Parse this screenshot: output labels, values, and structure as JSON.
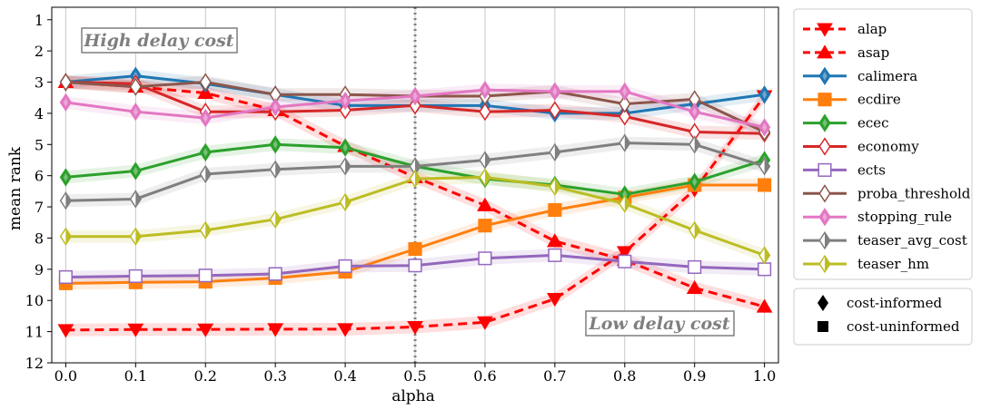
{
  "chart_data": {
    "type": "line",
    "title": "",
    "xlabel": "alpha",
    "ylabel": "mean rank",
    "x": [
      0.0,
      0.1,
      0.2,
      0.3,
      0.4,
      0.5,
      0.6,
      0.7,
      0.8,
      0.9,
      1.0
    ],
    "xticks": [
      "0.0",
      "0.1",
      "0.2",
      "0.3",
      "0.4",
      "0.5",
      "0.6",
      "0.7",
      "0.8",
      "0.9",
      "1.0"
    ],
    "yticks": [
      "1",
      "2",
      "3",
      "4",
      "5",
      "6",
      "7",
      "8",
      "9",
      "10",
      "11",
      "12"
    ],
    "xlim": [
      -0.02,
      1.02
    ],
    "ylim": [
      12,
      0.6
    ],
    "y_inverted": true,
    "vline_x": 0.5,
    "grid": "vertical",
    "annotations": [
      {
        "text": "High delay cost",
        "anchor": "top-left"
      },
      {
        "text": "Low delay cost",
        "anchor": "bottom-right"
      }
    ],
    "series": [
      {
        "name": "alap",
        "color": "#ff0000",
        "marker": "triangle-down",
        "dashed": true,
        "filled": true,
        "values": [
          10.95,
          10.93,
          10.93,
          10.92,
          10.92,
          10.85,
          10.7,
          9.95,
          8.45,
          6.45,
          3.45
        ]
      },
      {
        "name": "asap",
        "color": "#ff0000",
        "marker": "triangle-up",
        "dashed": true,
        "filled": true,
        "values": [
          3.0,
          3.15,
          3.35,
          3.9,
          5.05,
          6.05,
          6.95,
          8.1,
          8.7,
          9.6,
          10.2
        ]
      },
      {
        "name": "calimera",
        "color": "#1f77b4",
        "marker": "diamond",
        "filled": true,
        "values": [
          3.0,
          2.8,
          3.05,
          3.4,
          3.75,
          3.75,
          3.75,
          4.0,
          4.0,
          3.7,
          3.4
        ]
      },
      {
        "name": "ecdire",
        "color": "#ff7f0e",
        "marker": "square",
        "filled": true,
        "values": [
          9.45,
          9.42,
          9.4,
          9.28,
          9.08,
          8.35,
          7.6,
          7.1,
          6.7,
          6.3,
          6.3
        ]
      },
      {
        "name": "ecec",
        "color": "#2ca02c",
        "marker": "diamond",
        "filled": true,
        "values": [
          6.05,
          5.85,
          5.25,
          5.0,
          5.1,
          5.7,
          6.1,
          6.3,
          6.6,
          6.2,
          5.5
        ]
      },
      {
        "name": "economy",
        "color": "#d62728",
        "marker": "diamond",
        "filled": false,
        "values": [
          3.0,
          3.05,
          3.95,
          3.95,
          3.9,
          3.75,
          3.95,
          3.9,
          4.1,
          4.6,
          4.65
        ]
      },
      {
        "name": "ects",
        "color": "#9467bd",
        "marker": "square",
        "filled": false,
        "values": [
          9.25,
          9.22,
          9.2,
          9.15,
          8.9,
          8.88,
          8.65,
          8.55,
          8.75,
          8.93,
          9.0
        ]
      },
      {
        "name": "proba_threshold",
        "color": "#8c564b",
        "marker": "diamond",
        "filled": false,
        "values": [
          3.0,
          3.15,
          3.0,
          3.4,
          3.4,
          3.45,
          3.45,
          3.3,
          3.7,
          3.55,
          4.6
        ]
      },
      {
        "name": "stopping_rule",
        "color": "#e377c2",
        "marker": "diamond",
        "filled": true,
        "values": [
          3.65,
          3.95,
          4.15,
          3.8,
          3.6,
          3.45,
          3.25,
          3.3,
          3.3,
          3.95,
          4.45
        ]
      },
      {
        "name": "teaser_avg_cost",
        "color": "#7f7f7f",
        "marker": "diamond",
        "filled": true,
        "half": true,
        "values": [
          6.8,
          6.75,
          5.95,
          5.8,
          5.7,
          5.7,
          5.5,
          5.25,
          4.95,
          5.0,
          5.7
        ]
      },
      {
        "name": "teaser_hm",
        "color": "#bcbd22",
        "marker": "diamond",
        "filled": true,
        "half": true,
        "values": [
          7.95,
          7.95,
          7.75,
          7.4,
          6.85,
          6.1,
          6.05,
          6.35,
          6.9,
          7.75,
          8.55
        ]
      }
    ],
    "legend": {
      "placement": "outside-right",
      "items": [
        "alap",
        "asap",
        "calimera",
        "ecdire",
        "ecec",
        "economy",
        "ects",
        "proba_threshold",
        "stopping_rule",
        "teaser_avg_cost",
        "teaser_hm"
      ],
      "marker_legend": [
        {
          "label": "cost-informed",
          "marker": "diamond"
        },
        {
          "label": "cost-uninformed",
          "marker": "square"
        }
      ]
    }
  }
}
